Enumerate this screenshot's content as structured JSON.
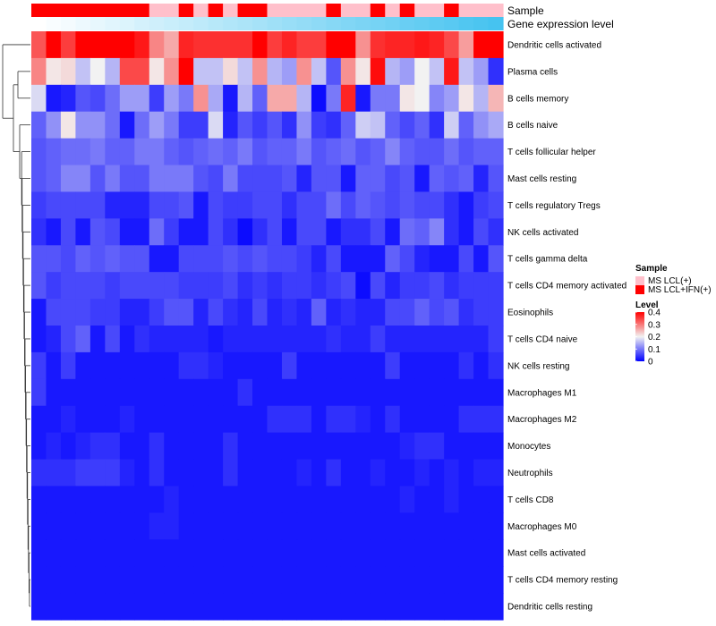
{
  "chart_data": {
    "type": "heatmap",
    "annotation_tracks": [
      {
        "name": "Sample",
        "values": [
          "MS LCL+IFN(+)",
          "MS LCL+IFN(+)",
          "MS LCL+IFN(+)",
          "MS LCL+IFN(+)",
          "MS LCL+IFN(+)",
          "MS LCL+IFN(+)",
          "MS LCL+IFN(+)",
          "MS LCL+IFN(+)",
          "MS LCL(+)",
          "MS LCL(+)",
          "MS LCL+IFN(+)",
          "MS LCL(+)",
          "MS LCL+IFN(+)",
          "MS LCL(+)",
          "MS LCL+IFN(+)",
          "MS LCL+IFN(+)",
          "MS LCL(+)",
          "MS LCL(+)",
          "MS LCL(+)",
          "MS LCL(+)",
          "MS LCL+IFN(+)",
          "MS LCL(+)",
          "MS LCL(+)",
          "MS LCL+IFN(+)",
          "MS LCL(+)",
          "MS LCL+IFN(+)",
          "MS LCL(+)",
          "MS LCL(+)",
          "MS LCL+IFN(+)",
          "MS LCL(+)",
          "MS LCL(+)",
          "MS LCL(+)"
        ]
      },
      {
        "name": "Gene expression level",
        "values": [
          0.0,
          0.03,
          0.06,
          0.1,
          0.13,
          0.16,
          0.19,
          0.23,
          0.26,
          0.29,
          0.32,
          0.35,
          0.39,
          0.42,
          0.45,
          0.48,
          0.52,
          0.55,
          0.58,
          0.61,
          0.65,
          0.68,
          0.71,
          0.74,
          0.77,
          0.81,
          0.84,
          0.87,
          0.9,
          0.94,
          0.97,
          1.0
        ]
      }
    ],
    "rows": [
      "Dendritic cells activated",
      "Plasma cells",
      "B cells memory",
      "B cells naive",
      "T cells follicular helper",
      "Mast cells resting",
      "T cells regulatory  Tregs",
      "NK cells activated",
      "T cells gamma delta",
      "T cells CD4 memory activated",
      "Eosinophils",
      "T cells CD4 naive",
      "NK cells resting",
      "Macrophages M1",
      "Macrophages M2",
      "Monocytes",
      "Neutrophils",
      "T cells CD8",
      "Macrophages M0",
      "Mast cells activated",
      "T cells CD4 memory resting",
      "Dendritic cells resting"
    ],
    "values": [
      [
        0.33,
        0.4,
        0.35,
        0.4,
        0.4,
        0.4,
        0.4,
        0.38,
        0.29,
        0.26,
        0.37,
        0.36,
        0.36,
        0.36,
        0.36,
        0.4,
        0.35,
        0.37,
        0.35,
        0.35,
        0.4,
        0.4,
        0.28,
        0.36,
        0.37,
        0.37,
        0.38,
        0.37,
        0.34,
        0.27,
        0.4,
        0.4
      ],
      [
        0.29,
        0.21,
        0.22,
        0.16,
        0.2,
        0.15,
        0.34,
        0.34,
        0.21,
        0.28,
        0.41,
        0.16,
        0.16,
        0.22,
        0.16,
        0.28,
        0.15,
        0.13,
        0.28,
        0.16,
        0.07,
        0.28,
        0.21,
        0.39,
        0.15,
        0.13,
        0.2,
        0.16,
        0.38,
        0.16,
        0.13,
        0.04
      ],
      [
        0.18,
        0.02,
        0.03,
        0.07,
        0.06,
        0.09,
        0.13,
        0.13,
        0.05,
        0.13,
        0.1,
        0.28,
        0.14,
        0.02,
        0.15,
        0.08,
        0.26,
        0.26,
        0.15,
        0.01,
        0.1,
        0.37,
        0.02,
        0.1,
        0.1,
        0.21,
        0.2,
        0.11,
        0.13,
        0.21,
        0.15,
        0.25
      ],
      [
        0.08,
        0.12,
        0.21,
        0.12,
        0.12,
        0.09,
        0.02,
        0.09,
        0.13,
        0.1,
        0.05,
        0.05,
        0.18,
        0.03,
        0.07,
        0.05,
        0.07,
        0.04,
        0.12,
        0.05,
        0.04,
        0.08,
        0.17,
        0.16,
        0.08,
        0.06,
        0.08,
        0.04,
        0.17,
        0.08,
        0.12,
        0.14
      ],
      [
        0.07,
        0.08,
        0.09,
        0.09,
        0.1,
        0.08,
        0.08,
        0.1,
        0.1,
        0.08,
        0.07,
        0.08,
        0.09,
        0.08,
        0.1,
        0.07,
        0.08,
        0.08,
        0.1,
        0.07,
        0.08,
        0.09,
        0.07,
        0.08,
        0.11,
        0.08,
        0.07,
        0.07,
        0.09,
        0.07,
        0.08,
        0.08
      ],
      [
        0.07,
        0.08,
        0.11,
        0.11,
        0.07,
        0.1,
        0.07,
        0.07,
        0.1,
        0.1,
        0.1,
        0.07,
        0.06,
        0.1,
        0.06,
        0.06,
        0.06,
        0.07,
        0.03,
        0.07,
        0.07,
        0.02,
        0.08,
        0.08,
        0.06,
        0.07,
        0.02,
        0.08,
        0.07,
        0.08,
        0.03,
        0.07
      ],
      [
        0.05,
        0.06,
        0.06,
        0.06,
        0.06,
        0.03,
        0.03,
        0.03,
        0.06,
        0.06,
        0.07,
        0.02,
        0.06,
        0.05,
        0.05,
        0.06,
        0.06,
        0.04,
        0.06,
        0.06,
        0.09,
        0.06,
        0.08,
        0.07,
        0.06,
        0.07,
        0.06,
        0.06,
        0.04,
        0.02,
        0.05,
        0.06
      ],
      [
        0.04,
        0.02,
        0.06,
        0.02,
        0.07,
        0.06,
        0.02,
        0.02,
        0.09,
        0.05,
        0.02,
        0.02,
        0.06,
        0.04,
        0.01,
        0.04,
        0.06,
        0.02,
        0.06,
        0.06,
        0.02,
        0.04,
        0.04,
        0.06,
        0.02,
        0.09,
        0.08,
        0.11,
        0.04,
        0.02,
        0.06,
        0.04
      ],
      [
        0.07,
        0.07,
        0.06,
        0.08,
        0.07,
        0.08,
        0.07,
        0.07,
        0.02,
        0.02,
        0.06,
        0.06,
        0.06,
        0.07,
        0.06,
        0.07,
        0.06,
        0.06,
        0.05,
        0.03,
        0.06,
        0.02,
        0.02,
        0.02,
        0.08,
        0.06,
        0.03,
        0.02,
        0.02,
        0.06,
        0.02,
        0.07
      ],
      [
        0.07,
        0.05,
        0.06,
        0.06,
        0.06,
        0.05,
        0.06,
        0.06,
        0.06,
        0.06,
        0.05,
        0.05,
        0.05,
        0.06,
        0.04,
        0.05,
        0.04,
        0.05,
        0.05,
        0.04,
        0.05,
        0.06,
        0.01,
        0.06,
        0.03,
        0.05,
        0.05,
        0.06,
        0.04,
        0.05,
        0.05,
        0.05
      ],
      [
        0.02,
        0.06,
        0.06,
        0.06,
        0.05,
        0.05,
        0.03,
        0.03,
        0.05,
        0.07,
        0.07,
        0.03,
        0.06,
        0.04,
        0.03,
        0.06,
        0.03,
        0.04,
        0.03,
        0.08,
        0.03,
        0.04,
        0.03,
        0.03,
        0.06,
        0.06,
        0.08,
        0.06,
        0.07,
        0.04,
        0.05,
        0.05
      ],
      [
        0.02,
        0.03,
        0.06,
        0.08,
        0.02,
        0.06,
        0.02,
        0.04,
        0.03,
        0.03,
        0.03,
        0.03,
        0.02,
        0.03,
        0.03,
        0.03,
        0.03,
        0.03,
        0.03,
        0.03,
        0.04,
        0.03,
        0.03,
        0.05,
        0.03,
        0.03,
        0.03,
        0.03,
        0.03,
        0.03,
        0.03,
        0.05
      ],
      [
        0.05,
        0.02,
        0.05,
        0.02,
        0.02,
        0.02,
        0.02,
        0.02,
        0.02,
        0.02,
        0.04,
        0.04,
        0.03,
        0.02,
        0.02,
        0.02,
        0.02,
        0.05,
        0.02,
        0.02,
        0.02,
        0.02,
        0.02,
        0.02,
        0.05,
        0.02,
        0.02,
        0.02,
        0.02,
        0.04,
        0.02,
        0.04
      ],
      [
        0.05,
        0.02,
        0.02,
        0.02,
        0.02,
        0.02,
        0.02,
        0.02,
        0.02,
        0.02,
        0.02,
        0.02,
        0.02,
        0.02,
        0.04,
        0.02,
        0.02,
        0.02,
        0.02,
        0.02,
        0.02,
        0.02,
        0.02,
        0.02,
        0.02,
        0.02,
        0.02,
        0.02,
        0.02,
        0.02,
        0.02,
        0.02
      ],
      [
        0.02,
        0.02,
        0.03,
        0.02,
        0.02,
        0.02,
        0.03,
        0.02,
        0.02,
        0.02,
        0.02,
        0.02,
        0.02,
        0.02,
        0.02,
        0.02,
        0.04,
        0.04,
        0.04,
        0.02,
        0.04,
        0.04,
        0.03,
        0.02,
        0.04,
        0.02,
        0.02,
        0.02,
        0.02,
        0.04,
        0.04,
        0.04
      ],
      [
        0.02,
        0.03,
        0.02,
        0.03,
        0.04,
        0.04,
        0.02,
        0.02,
        0.04,
        0.02,
        0.02,
        0.02,
        0.02,
        0.04,
        0.02,
        0.02,
        0.02,
        0.02,
        0.02,
        0.02,
        0.02,
        0.02,
        0.02,
        0.02,
        0.02,
        0.03,
        0.04,
        0.04,
        0.02,
        0.02,
        0.02,
        0.02
      ],
      [
        0.04,
        0.04,
        0.04,
        0.05,
        0.05,
        0.05,
        0.03,
        0.02,
        0.04,
        0.02,
        0.02,
        0.02,
        0.02,
        0.04,
        0.02,
        0.02,
        0.02,
        0.02,
        0.03,
        0.02,
        0.04,
        0.02,
        0.02,
        0.03,
        0.02,
        0.02,
        0.03,
        0.02,
        0.03,
        0.02,
        0.03,
        0.03
      ],
      [
        0.02,
        0.02,
        0.02,
        0.02,
        0.02,
        0.02,
        0.02,
        0.02,
        0.02,
        0.03,
        0.02,
        0.02,
        0.02,
        0.02,
        0.02,
        0.02,
        0.02,
        0.02,
        0.02,
        0.02,
        0.02,
        0.02,
        0.02,
        0.02,
        0.02,
        0.03,
        0.02,
        0.02,
        0.03,
        0.02,
        0.02,
        0.02
      ],
      [
        0.02,
        0.02,
        0.02,
        0.02,
        0.02,
        0.02,
        0.02,
        0.02,
        0.03,
        0.03,
        0.02,
        0.02,
        0.02,
        0.02,
        0.02,
        0.02,
        0.02,
        0.02,
        0.02,
        0.02,
        0.02,
        0.02,
        0.02,
        0.02,
        0.02,
        0.02,
        0.02,
        0.02,
        0.02,
        0.02,
        0.02,
        0.02
      ],
      [
        0.02,
        0.02,
        0.02,
        0.02,
        0.02,
        0.02,
        0.02,
        0.02,
        0.02,
        0.02,
        0.02,
        0.02,
        0.02,
        0.02,
        0.02,
        0.02,
        0.02,
        0.02,
        0.02,
        0.02,
        0.02,
        0.02,
        0.02,
        0.02,
        0.02,
        0.02,
        0.02,
        0.02,
        0.02,
        0.02,
        0.02,
        0.02
      ],
      [
        0.02,
        0.02,
        0.02,
        0.02,
        0.02,
        0.02,
        0.02,
        0.02,
        0.02,
        0.02,
        0.02,
        0.02,
        0.02,
        0.02,
        0.02,
        0.02,
        0.02,
        0.02,
        0.02,
        0.02,
        0.02,
        0.02,
        0.02,
        0.02,
        0.02,
        0.02,
        0.02,
        0.02,
        0.02,
        0.02,
        0.02,
        0.02
      ],
      [
        0.02,
        0.02,
        0.02,
        0.02,
        0.02,
        0.02,
        0.02,
        0.02,
        0.02,
        0.02,
        0.02,
        0.02,
        0.02,
        0.02,
        0.02,
        0.02,
        0.02,
        0.02,
        0.02,
        0.02,
        0.02,
        0.02,
        0.02,
        0.02,
        0.02,
        0.02,
        0.02,
        0.02,
        0.02,
        0.02,
        0.02,
        0.02
      ]
    ],
    "color_scale": {
      "min": 0,
      "max": 0.4,
      "low": "#0000ff",
      "mid": "#f2f2f2",
      "mid_value": 0.2,
      "high": "#ff0000"
    },
    "legend": {
      "sample": {
        "title": "Sample",
        "items": [
          {
            "label": "MS LCL(+)",
            "color": "#ffc0cb"
          },
          {
            "label": "MS LCL+IFN(+)",
            "color": "#ff0000"
          }
        ]
      },
      "level": {
        "title": "Level",
        "ticks": [
          "0.4",
          "0.3",
          "0.2",
          "0.1",
          "0"
        ]
      }
    },
    "track_colors": {
      "gene_low": "#ffffff",
      "gene_high": "#46c3f0"
    },
    "legend_placement": "right"
  }
}
